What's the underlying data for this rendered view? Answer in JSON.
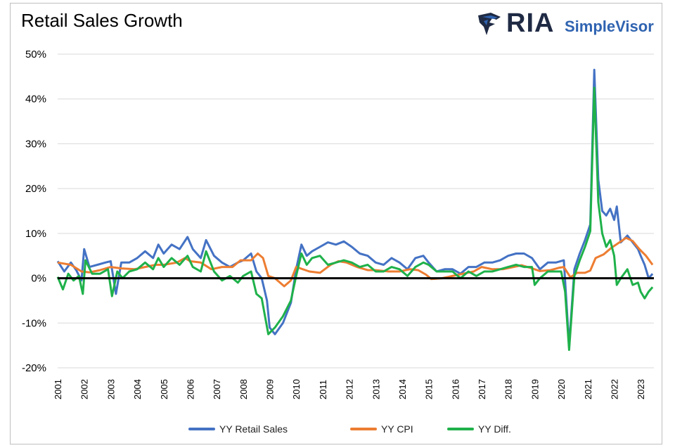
{
  "chart_data": {
    "type": "line",
    "title": "Retail Sales Growth",
    "xlabel": "",
    "ylabel": "",
    "x_range": [
      2001.0,
      2023.5
    ],
    "ylim": [
      -20,
      50
    ],
    "y_ticks": [
      -20,
      -10,
      0,
      10,
      20,
      30,
      40,
      50
    ],
    "y_tick_labels": [
      "-20%",
      "-10%",
      "0%",
      "10%",
      "20%",
      "30%",
      "40%",
      "50%"
    ],
    "x_tick_labels": [
      "2001",
      "2002",
      "2003",
      "2004",
      "2005",
      "2006",
      "2007",
      "2008",
      "2009",
      "2010",
      "2011",
      "2012",
      "2013",
      "2014",
      "2015",
      "2016",
      "2017",
      "2018",
      "2019",
      "2020",
      "2021",
      "2022",
      "2023"
    ],
    "grid": "horizontal",
    "zero_line": true,
    "legend": "bottom",
    "series": [
      {
        "name": "YY Retail Sales",
        "color": "#4472c4",
        "points": [
          [
            2001.0,
            3.8
          ],
          [
            2001.25,
            1.5
          ],
          [
            2001.5,
            3.5
          ],
          [
            2001.7,
            1.8
          ],
          [
            2001.9,
            -0.5
          ],
          [
            2002.0,
            6.5
          ],
          [
            2002.2,
            2.5
          ],
          [
            2002.5,
            3.0
          ],
          [
            2002.8,
            3.5
          ],
          [
            2003.0,
            3.8
          ],
          [
            2003.2,
            -3.5
          ],
          [
            2003.4,
            3.5
          ],
          [
            2003.7,
            3.5
          ],
          [
            2004.0,
            4.5
          ],
          [
            2004.3,
            6.0
          ],
          [
            2004.6,
            4.5
          ],
          [
            2004.8,
            7.5
          ],
          [
            2005.0,
            5.5
          ],
          [
            2005.3,
            7.5
          ],
          [
            2005.6,
            6.5
          ],
          [
            2005.9,
            9.2
          ],
          [
            2006.1,
            6.5
          ],
          [
            2006.4,
            4.5
          ],
          [
            2006.6,
            8.5
          ],
          [
            2006.9,
            5.0
          ],
          [
            2007.2,
            3.5
          ],
          [
            2007.5,
            2.5
          ],
          [
            2007.8,
            3.5
          ],
          [
            2008.0,
            4.0
          ],
          [
            2008.3,
            5.5
          ],
          [
            2008.5,
            1.5
          ],
          [
            2008.7,
            0.0
          ],
          [
            2008.9,
            -5.0
          ],
          [
            2009.0,
            -11.0
          ],
          [
            2009.2,
            -12.5
          ],
          [
            2009.5,
            -10.0
          ],
          [
            2009.8,
            -5.5
          ],
          [
            2010.0,
            2.0
          ],
          [
            2010.2,
            7.5
          ],
          [
            2010.4,
            5.0
          ],
          [
            2010.6,
            6.0
          ],
          [
            2010.9,
            7.0
          ],
          [
            2011.2,
            8.0
          ],
          [
            2011.5,
            7.5
          ],
          [
            2011.8,
            8.2
          ],
          [
            2012.1,
            7.0
          ],
          [
            2012.4,
            5.5
          ],
          [
            2012.7,
            5.0
          ],
          [
            2013.0,
            3.5
          ],
          [
            2013.3,
            3.0
          ],
          [
            2013.6,
            4.5
          ],
          [
            2013.9,
            3.5
          ],
          [
            2014.2,
            2.0
          ],
          [
            2014.5,
            4.5
          ],
          [
            2014.8,
            5.0
          ],
          [
            2015.0,
            3.5
          ],
          [
            2015.3,
            1.5
          ],
          [
            2015.6,
            2.0
          ],
          [
            2015.9,
            2.0
          ],
          [
            2016.2,
            1.0
          ],
          [
            2016.5,
            2.5
          ],
          [
            2016.8,
            2.5
          ],
          [
            2017.1,
            3.5
          ],
          [
            2017.4,
            3.5
          ],
          [
            2017.7,
            4.0
          ],
          [
            2018.0,
            5.0
          ],
          [
            2018.3,
            5.5
          ],
          [
            2018.6,
            5.5
          ],
          [
            2018.9,
            4.5
          ],
          [
            2019.2,
            2.0
          ],
          [
            2019.5,
            3.5
          ],
          [
            2019.8,
            3.5
          ],
          [
            2020.1,
            4.0
          ],
          [
            2020.3,
            -15.0
          ],
          [
            2020.5,
            2.0
          ],
          [
            2020.7,
            5.5
          ],
          [
            2020.9,
            8.5
          ],
          [
            2021.1,
            12.0
          ],
          [
            2021.25,
            46.5
          ],
          [
            2021.4,
            22.0
          ],
          [
            2021.55,
            15.0
          ],
          [
            2021.7,
            14.0
          ],
          [
            2021.85,
            15.5
          ],
          [
            2022.0,
            13.0
          ],
          [
            2022.1,
            16.0
          ],
          [
            2022.25,
            8.0
          ],
          [
            2022.5,
            9.5
          ],
          [
            2022.7,
            8.0
          ],
          [
            2022.9,
            6.5
          ],
          [
            2023.0,
            5.0
          ],
          [
            2023.15,
            3.0
          ],
          [
            2023.3,
            0.0
          ],
          [
            2023.45,
            1.0
          ]
        ]
      },
      {
        "name": "YY CPI",
        "color": "#ed7d31",
        "points": [
          [
            2001.0,
            3.5
          ],
          [
            2001.5,
            3.0
          ],
          [
            2001.9,
            1.5
          ],
          [
            2002.2,
            1.3
          ],
          [
            2002.6,
            1.8
          ],
          [
            2003.0,
            2.5
          ],
          [
            2003.4,
            2.2
          ],
          [
            2003.9,
            2.0
          ],
          [
            2004.3,
            2.5
          ],
          [
            2004.7,
            3.0
          ],
          [
            2005.0,
            3.0
          ],
          [
            2005.5,
            3.5
          ],
          [
            2005.8,
            4.5
          ],
          [
            2006.0,
            3.8
          ],
          [
            2006.4,
            3.5
          ],
          [
            2006.8,
            2.0
          ],
          [
            2007.2,
            2.5
          ],
          [
            2007.6,
            2.5
          ],
          [
            2007.9,
            4.0
          ],
          [
            2008.3,
            4.0
          ],
          [
            2008.55,
            5.5
          ],
          [
            2008.75,
            4.5
          ],
          [
            2008.95,
            0.5
          ],
          [
            2009.2,
            0.0
          ],
          [
            2009.55,
            -1.8
          ],
          [
            2009.8,
            -0.5
          ],
          [
            2010.0,
            2.5
          ],
          [
            2010.5,
            1.5
          ],
          [
            2010.9,
            1.2
          ],
          [
            2011.3,
            3.0
          ],
          [
            2011.6,
            3.8
          ],
          [
            2011.9,
            3.5
          ],
          [
            2012.3,
            2.5
          ],
          [
            2012.7,
            1.8
          ],
          [
            2013.0,
            1.8
          ],
          [
            2013.5,
            1.5
          ],
          [
            2013.9,
            1.5
          ],
          [
            2014.3,
            2.0
          ],
          [
            2014.6,
            1.8
          ],
          [
            2014.9,
            0.8
          ],
          [
            2015.1,
            -0.2
          ],
          [
            2015.5,
            0.0
          ],
          [
            2015.9,
            0.5
          ],
          [
            2016.3,
            1.0
          ],
          [
            2016.7,
            1.5
          ],
          [
            2017.0,
            2.5
          ],
          [
            2017.4,
            2.0
          ],
          [
            2017.8,
            2.0
          ],
          [
            2018.2,
            2.5
          ],
          [
            2018.5,
            2.9
          ],
          [
            2018.9,
            2.2
          ],
          [
            2019.2,
            1.6
          ],
          [
            2019.6,
            1.8
          ],
          [
            2019.9,
            2.3
          ],
          [
            2020.1,
            2.5
          ],
          [
            2020.35,
            0.2
          ],
          [
            2020.6,
            1.2
          ],
          [
            2020.9,
            1.2
          ],
          [
            2021.1,
            1.7
          ],
          [
            2021.3,
            4.5
          ],
          [
            2021.6,
            5.3
          ],
          [
            2021.9,
            6.8
          ],
          [
            2022.2,
            8.0
          ],
          [
            2022.45,
            9.0
          ],
          [
            2022.7,
            8.3
          ],
          [
            2022.95,
            6.5
          ],
          [
            2023.2,
            5.0
          ],
          [
            2023.45,
            3.0
          ]
        ]
      },
      {
        "name": "YY Diff.",
        "color": "#1fb14a",
        "points": [
          [
            2001.0,
            0.3
          ],
          [
            2001.2,
            -2.5
          ],
          [
            2001.4,
            1.0
          ],
          [
            2001.6,
            -0.5
          ],
          [
            2001.8,
            0.5
          ],
          [
            2001.95,
            -3.5
          ],
          [
            2002.05,
            4.0
          ],
          [
            2002.3,
            1.0
          ],
          [
            2002.6,
            1.0
          ],
          [
            2002.9,
            2.0
          ],
          [
            2003.05,
            -4.0
          ],
          [
            2003.25,
            1.5
          ],
          [
            2003.45,
            0.0
          ],
          [
            2003.7,
            1.5
          ],
          [
            2004.0,
            2.0
          ],
          [
            2004.3,
            3.5
          ],
          [
            2004.6,
            2.0
          ],
          [
            2004.8,
            4.5
          ],
          [
            2005.0,
            2.5
          ],
          [
            2005.3,
            4.5
          ],
          [
            2005.6,
            3.0
          ],
          [
            2005.9,
            5.0
          ],
          [
            2006.1,
            2.5
          ],
          [
            2006.4,
            1.5
          ],
          [
            2006.6,
            6.0
          ],
          [
            2006.9,
            1.5
          ],
          [
            2007.2,
            -0.5
          ],
          [
            2007.5,
            0.5
          ],
          [
            2007.8,
            -1.0
          ],
          [
            2008.0,
            0.5
          ],
          [
            2008.3,
            1.5
          ],
          [
            2008.5,
            -3.5
          ],
          [
            2008.7,
            -4.5
          ],
          [
            2008.95,
            -12.5
          ],
          [
            2009.2,
            -11.0
          ],
          [
            2009.5,
            -8.5
          ],
          [
            2009.8,
            -5.0
          ],
          [
            2010.0,
            0.5
          ],
          [
            2010.2,
            5.5
          ],
          [
            2010.4,
            3.0
          ],
          [
            2010.6,
            4.5
          ],
          [
            2010.9,
            5.0
          ],
          [
            2011.2,
            3.0
          ],
          [
            2011.5,
            3.5
          ],
          [
            2011.8,
            4.0
          ],
          [
            2012.1,
            3.5
          ],
          [
            2012.4,
            2.5
          ],
          [
            2012.7,
            3.0
          ],
          [
            2013.0,
            1.5
          ],
          [
            2013.3,
            1.5
          ],
          [
            2013.6,
            2.5
          ],
          [
            2013.9,
            2.0
          ],
          [
            2014.2,
            0.5
          ],
          [
            2014.5,
            2.5
          ],
          [
            2014.8,
            3.5
          ],
          [
            2015.0,
            3.0
          ],
          [
            2015.3,
            1.5
          ],
          [
            2015.6,
            1.5
          ],
          [
            2015.9,
            1.5
          ],
          [
            2016.2,
            0.0
          ],
          [
            2016.5,
            1.5
          ],
          [
            2016.8,
            0.5
          ],
          [
            2017.1,
            1.5
          ],
          [
            2017.4,
            1.5
          ],
          [
            2017.7,
            2.0
          ],
          [
            2018.0,
            2.5
          ],
          [
            2018.3,
            3.0
          ],
          [
            2018.6,
            2.5
          ],
          [
            2018.9,
            2.5
          ],
          [
            2019.0,
            -1.5
          ],
          [
            2019.2,
            0.0
          ],
          [
            2019.5,
            1.5
          ],
          [
            2019.8,
            1.5
          ],
          [
            2020.0,
            1.5
          ],
          [
            2020.15,
            -3.0
          ],
          [
            2020.3,
            -16.0
          ],
          [
            2020.5,
            0.5
          ],
          [
            2020.7,
            4.0
          ],
          [
            2020.9,
            7.0
          ],
          [
            2021.1,
            10.5
          ],
          [
            2021.25,
            42.5
          ],
          [
            2021.4,
            17.0
          ],
          [
            2021.55,
            10.0
          ],
          [
            2021.7,
            7.0
          ],
          [
            2021.85,
            8.5
          ],
          [
            2022.0,
            5.0
          ],
          [
            2022.1,
            -1.5
          ],
          [
            2022.25,
            0.0
          ],
          [
            2022.5,
            2.0
          ],
          [
            2022.7,
            -1.5
          ],
          [
            2022.9,
            -1.0
          ],
          [
            2023.0,
            -3.0
          ],
          [
            2023.15,
            -4.5
          ],
          [
            2023.3,
            -3.0
          ],
          [
            2023.45,
            -2.0
          ]
        ]
      }
    ]
  },
  "branding": {
    "logo_ria": "RIA",
    "logo_simplevisor": "SimpleVisor"
  }
}
